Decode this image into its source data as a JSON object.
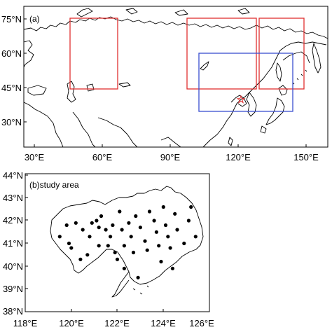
{
  "panel_a": {
    "label": "(a)",
    "x_ticks": [
      "30°E",
      "60°E",
      "90°E",
      "120°E",
      "150°E"
    ],
    "y_ticks": [
      "75°N",
      "60°N",
      "45°N",
      "30°N"
    ],
    "boxes": [
      {
        "name": "red-box-west",
        "color": "#e03030"
      },
      {
        "name": "red-box-central",
        "color": "#e03030"
      },
      {
        "name": "red-box-east",
        "color": "#e03030"
      },
      {
        "name": "blue-box",
        "color": "#3a4fd0"
      }
    ],
    "star_color": "#e03030"
  },
  "panel_b": {
    "label": "(b)study area",
    "x_ticks": [
      "118°E",
      "120°E",
      "122°E",
      "124°E",
      "126°E"
    ],
    "y_ticks": [
      "44°N",
      "43°N",
      "42°N",
      "41°N",
      "40°N",
      "39°N",
      "38°N"
    ],
    "station_marker": "dot",
    "stations": [
      [
        119.5,
        41.3
      ],
      [
        119.8,
        41.8
      ],
      [
        119.9,
        41.0
      ],
      [
        120.0,
        40.8
      ],
      [
        120.2,
        41.9
      ],
      [
        120.4,
        40.3
      ],
      [
        120.5,
        41.6
      ],
      [
        120.7,
        40.5
      ],
      [
        120.8,
        41.3
      ],
      [
        120.9,
        41.9
      ],
      [
        121.1,
        42.0
      ],
      [
        121.2,
        41.7
      ],
      [
        121.2,
        40.9
      ],
      [
        121.3,
        42.2
      ],
      [
        121.5,
        41.6
      ],
      [
        121.7,
        41.3
      ],
      [
        121.6,
        40.9
      ],
      [
        121.8,
        41.8
      ],
      [
        121.9,
        40.6
      ],
      [
        122.0,
        40.3
      ],
      [
        122.1,
        42.4
      ],
      [
        122.2,
        41.6
      ],
      [
        122.3,
        40.9
      ],
      [
        122.3,
        39.9
      ],
      [
        122.5,
        41.9
      ],
      [
        122.6,
        41.3
      ],
      [
        122.7,
        40.6
      ],
      [
        122.8,
        42.2
      ],
      [
        122.9,
        39.5
      ],
      [
        123.0,
        41.7
      ],
      [
        123.2,
        41.1
      ],
      [
        123.3,
        40.7
      ],
      [
        123.4,
        42.4
      ],
      [
        123.6,
        42.0
      ],
      [
        123.7,
        41.5
      ],
      [
        123.8,
        40.9
      ],
      [
        123.9,
        40.2
      ],
      [
        124.0,
        42.6
      ],
      [
        124.1,
        41.8
      ],
      [
        124.2,
        41.3
      ],
      [
        124.3,
        40.8
      ],
      [
        124.4,
        39.9
      ],
      [
        124.5,
        42.3
      ],
      [
        124.6,
        41.6
      ],
      [
        124.9,
        41.0
      ],
      [
        125.1,
        42.0
      ],
      [
        125.2,
        42.6
      ],
      [
        125.4,
        41.3
      ]
    ]
  }
}
